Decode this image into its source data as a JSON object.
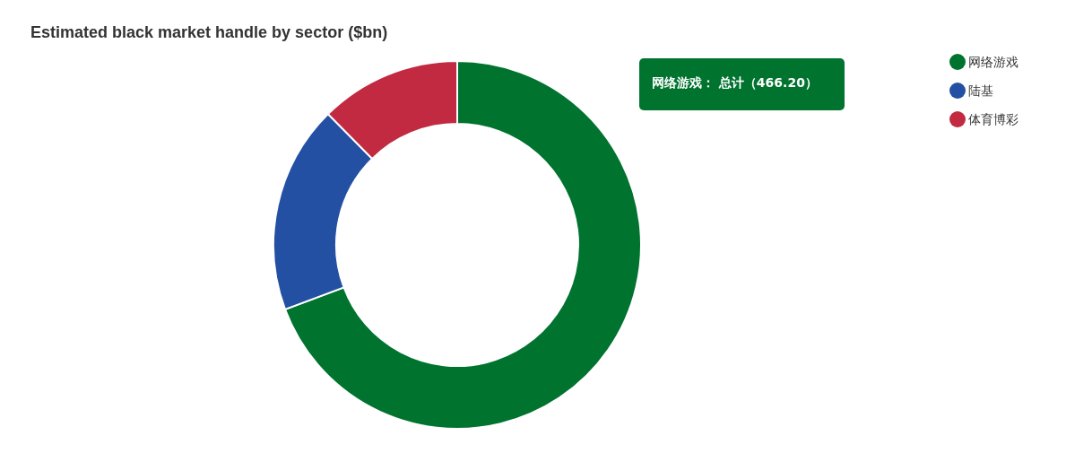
{
  "chart_data": {
    "type": "donut",
    "title": "Estimated black market handle by sector ($bn)",
    "categories": [
      "网络游戏",
      "陆基",
      "体育博彩"
    ],
    "values": [
      69.3,
      18.3,
      12.4
    ],
    "colors": [
      "#00732f",
      "#2350a3",
      "#c12a40"
    ],
    "legend": "top right",
    "annotations": [
      "网络游戏： 总计（466.20）"
    ]
  }
}
